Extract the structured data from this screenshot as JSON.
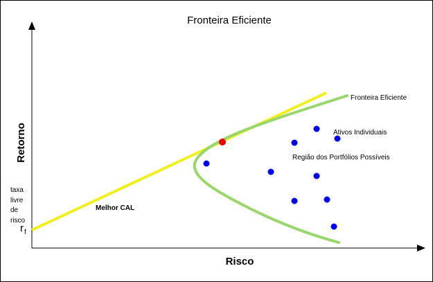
{
  "title": "Fronteira Eficiente",
  "axis": {
    "x_label": "Risco",
    "y_label": "Retorno"
  },
  "labels": {
    "risk_free_lines": [
      "taxa",
      "livre",
      "de",
      "risco"
    ],
    "rf_main": "r",
    "rf_sub": "f",
    "best_cal": "Melhor CAL",
    "frontier": "Fronteira Eficiente",
    "individual_assets": "Ativos Individuais",
    "possible_region": "Região dos Portfólios Possíveis"
  },
  "colors": {
    "cal_line": "#f0f020",
    "frontier": "#99d66b",
    "assets": "#0000ee",
    "tangency": "#ee0000",
    "axes": "#000000"
  }
}
